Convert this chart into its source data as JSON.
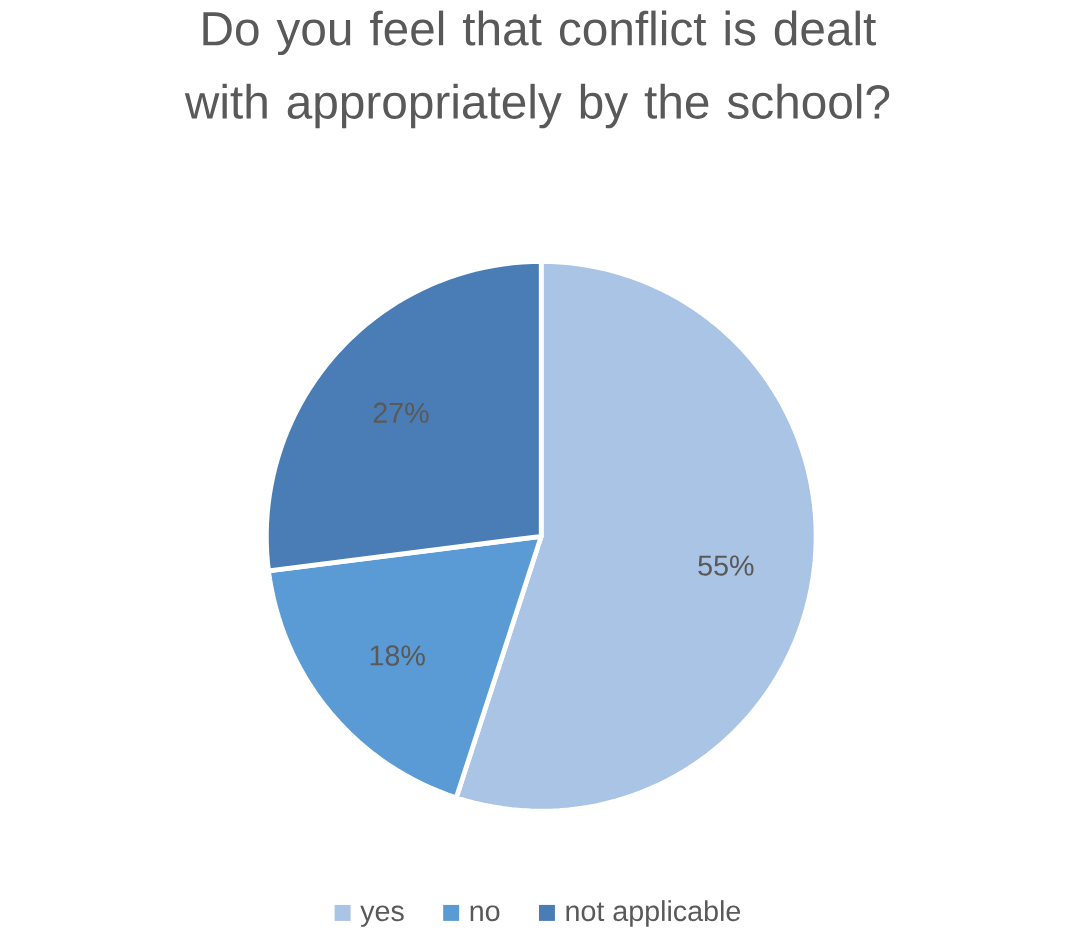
{
  "chart_data": {
    "type": "pie",
    "title": "Do you feel that conflict is dealt with appropriately by the school?",
    "categories": [
      "yes",
      "no",
      "not applicable"
    ],
    "values": [
      55,
      18,
      27
    ],
    "value_labels": [
      "55%",
      "18%",
      "27%"
    ],
    "colors": [
      "#a9c4e4",
      "#5b9bd5",
      "#4a7db5"
    ],
    "legend": "bottom"
  }
}
